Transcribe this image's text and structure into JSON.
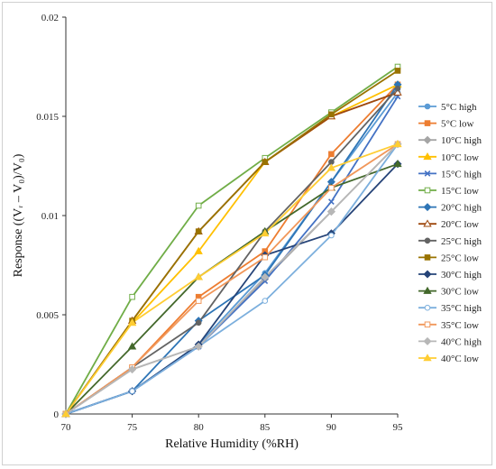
{
  "chart_data": {
    "type": "line",
    "title": "",
    "xlabel": "Relative Humidity (%RH)",
    "ylabel": "Response ((Vᵣ – V₀)/V₀)",
    "xlim": [
      70,
      95
    ],
    "ylim": [
      0,
      0.02
    ],
    "x_ticks": [
      "70",
      "75",
      "80",
      "85",
      "90",
      "95"
    ],
    "y_ticks": [
      "0",
      "0.005",
      "0.01",
      "0.015",
      "0.02"
    ],
    "grid": false,
    "legend_position": "right",
    "x": [
      70,
      75,
      80,
      85,
      90,
      95
    ],
    "series": [
      {
        "name": "5°C high",
        "color": "#5B9BD5",
        "marker": "circle",
        "values": [
          0,
          0.00115,
          0.0035,
          0.0071,
          0.0117,
          0.0162
        ]
      },
      {
        "name": "5°C low",
        "color": "#ED7D31",
        "marker": "square",
        "values": [
          0,
          0.00235,
          0.0059,
          0.0082,
          0.0131,
          0.0166
        ]
      },
      {
        "name": "10°C high",
        "color": "#A5A5A5",
        "marker": "diamond",
        "values": [
          0,
          0.00225,
          0.0034,
          0.0068,
          0.0102,
          0.0136
        ]
      },
      {
        "name": "10°C low",
        "color": "#FFC000",
        "marker": "triangle",
        "values": [
          0,
          0.0046,
          0.0082,
          0.0127,
          0.015,
          0.0166
        ]
      },
      {
        "name": "15°C high",
        "color": "#4472C4",
        "marker": "x",
        "values": [
          0,
          0.00115,
          0.0034,
          0.0067,
          0.0107,
          0.016
        ]
      },
      {
        "name": "15°C low",
        "color": "#70AD47",
        "marker": "square-open",
        "values": [
          0,
          0.0059,
          0.0105,
          0.0129,
          0.0152,
          0.0175
        ]
      },
      {
        "name": "20°C high",
        "color": "#2E75B6",
        "marker": "diamond",
        "values": [
          0,
          0.00115,
          0.0047,
          0.007,
          0.0117,
          0.0166
        ]
      },
      {
        "name": "20°C low",
        "color": "#9E480E",
        "marker": "triangle-open",
        "values": [
          0,
          0.0047,
          0.0092,
          0.0127,
          0.015,
          0.0162
        ]
      },
      {
        "name": "25°C high",
        "color": "#636363",
        "marker": "circle",
        "values": [
          0,
          0.00235,
          0.0046,
          0.0092,
          0.0127,
          0.0164
        ]
      },
      {
        "name": "25°C low",
        "color": "#997300",
        "marker": "square",
        "values": [
          0,
          0.0047,
          0.0092,
          0.0127,
          0.0151,
          0.0173
        ]
      },
      {
        "name": "30°C high",
        "color": "#264478",
        "marker": "diamond",
        "values": [
          0,
          0.00115,
          0.0035,
          0.008,
          0.0091,
          0.0126
        ]
      },
      {
        "name": "30°C low",
        "color": "#43682B",
        "marker": "triangle",
        "values": [
          0,
          0.0034,
          0.0069,
          0.0092,
          0.0114,
          0.0126
        ]
      },
      {
        "name": "35°C high",
        "color": "#7CAFDD",
        "marker": "circle-open",
        "values": [
          0,
          0.00115,
          0.0034,
          0.0057,
          0.009,
          0.0136
        ]
      },
      {
        "name": "35°C low",
        "color": "#F1975A",
        "marker": "square-open",
        "values": [
          0,
          0.00235,
          0.0057,
          0.0079,
          0.0114,
          0.0136
        ]
      },
      {
        "name": "40°C high",
        "color": "#B7B7B7",
        "marker": "diamond",
        "values": [
          0,
          0.00225,
          0.0034,
          0.0069,
          0.0102,
          0.0136
        ]
      },
      {
        "name": "40°C low",
        "color": "#FFCD33",
        "marker": "triangle",
        "values": [
          0,
          0.0046,
          0.0069,
          0.0091,
          0.0124,
          0.0136
        ]
      }
    ]
  }
}
